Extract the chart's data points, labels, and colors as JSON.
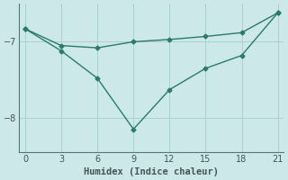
{
  "xlabel": "Humidex (Indice chaleur)",
  "bg_color": "#cce8e8",
  "line_color": "#2a7a6f",
  "line1_x": [
    0,
    3,
    6,
    9,
    12,
    15,
    18,
    21
  ],
  "line1_y": [
    -6.83,
    -7.05,
    -7.08,
    -7.0,
    -6.97,
    -6.93,
    -6.88,
    -6.62
  ],
  "line2_x": [
    0,
    3,
    6,
    9,
    12,
    15,
    18,
    21
  ],
  "line2_y": [
    -6.83,
    -7.12,
    -7.48,
    -8.15,
    -7.63,
    -7.35,
    -7.18,
    -6.62
  ],
  "xlim": [
    -0.5,
    21.5
  ],
  "ylim": [
    -8.45,
    -6.5
  ],
  "xticks": [
    0,
    3,
    6,
    9,
    12,
    15,
    18,
    21
  ],
  "yticks": [
    -8,
    -7
  ],
  "grid_color": "#aad0d0",
  "marker": "D",
  "markersize": 2.5,
  "linewidth": 1.0,
  "linestyle": "-",
  "tick_labelsize": 7,
  "xlabel_fontsize": 7.5,
  "spine_color": "#557777",
  "tick_color": "#445555"
}
